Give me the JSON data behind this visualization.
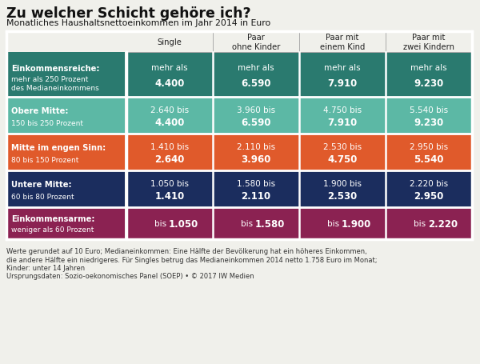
{
  "title": "Zu welcher Schicht gehöre ich?",
  "subtitle": "Monatliches Haushaltsnettoeinkommen im Jahr 2014 in Euro",
  "col_headers": [
    "Single",
    "Paar\nohne Kinder",
    "Paar mit\neinem Kind",
    "Paar mit\nzwei Kindern"
  ],
  "row_labels": [
    [
      "Einkommensreiche:",
      "mehr als 250 Prozent\ndes Medianeinkommens"
    ],
    [
      "Obere Mitte:",
      "150 bis 250 Prozent"
    ],
    [
      "Mitte im engen Sinn:",
      "80 bis 150 Prozent"
    ],
    [
      "Untere Mitte:",
      "60 bis 80 Prozent"
    ],
    [
      "Einkommensarme:",
      "weniger als 60 Prozent"
    ]
  ],
  "row_label_subtitle_colors": [
    "#2a7a6f",
    "#5cb8a5",
    "#e05a2b",
    "#1b2d5e",
    "#8b2252"
  ],
  "row_bg_colors": [
    "#2a7a6f",
    "#5cb8a5",
    "#e05a2b",
    "#1b2d5e",
    "#8b2252"
  ],
  "cell_data": [
    [
      "mehr als\n4.400",
      "mehr als\n6.590",
      "mehr als\n7.910",
      "mehr als\n9.230"
    ],
    [
      "2.640 bis\n4.400",
      "3.960 bis\n6.590",
      "4.750 bis\n7.910",
      "5.540 bis\n9.230"
    ],
    [
      "1.410 bis\n2.640",
      "2.110 bis\n3.960",
      "2.530 bis\n4.750",
      "2.950 bis\n5.540"
    ],
    [
      "1.050 bis\n1.410",
      "1.580 bis\n2.110",
      "1.900 bis\n2.530",
      "2.220 bis\n2.950"
    ],
    [
      "bis 1.050",
      "bis 1.580",
      "bis 1.900",
      "bis 2.220"
    ]
  ],
  "footnote_line1": "Werte gerundet auf 10 Euro; Medianeinkommen: Eine Hälfte der Bevölkerung hat ein höheres Einkommen,",
  "footnote_line2": "die andere Hälfte ein niedrigeres. Für Singles betrug das Medianeinkommen 2014 netto 1.758 Euro im Monat;",
  "footnote_line3": "Kinder: unter 14 Jahren",
  "footnote_line4": "Ursprungsdaten: Sozio-oekonomisches Panel (SOEP) • © 2017 IW Medien",
  "bg_color": "#f0f0eb"
}
